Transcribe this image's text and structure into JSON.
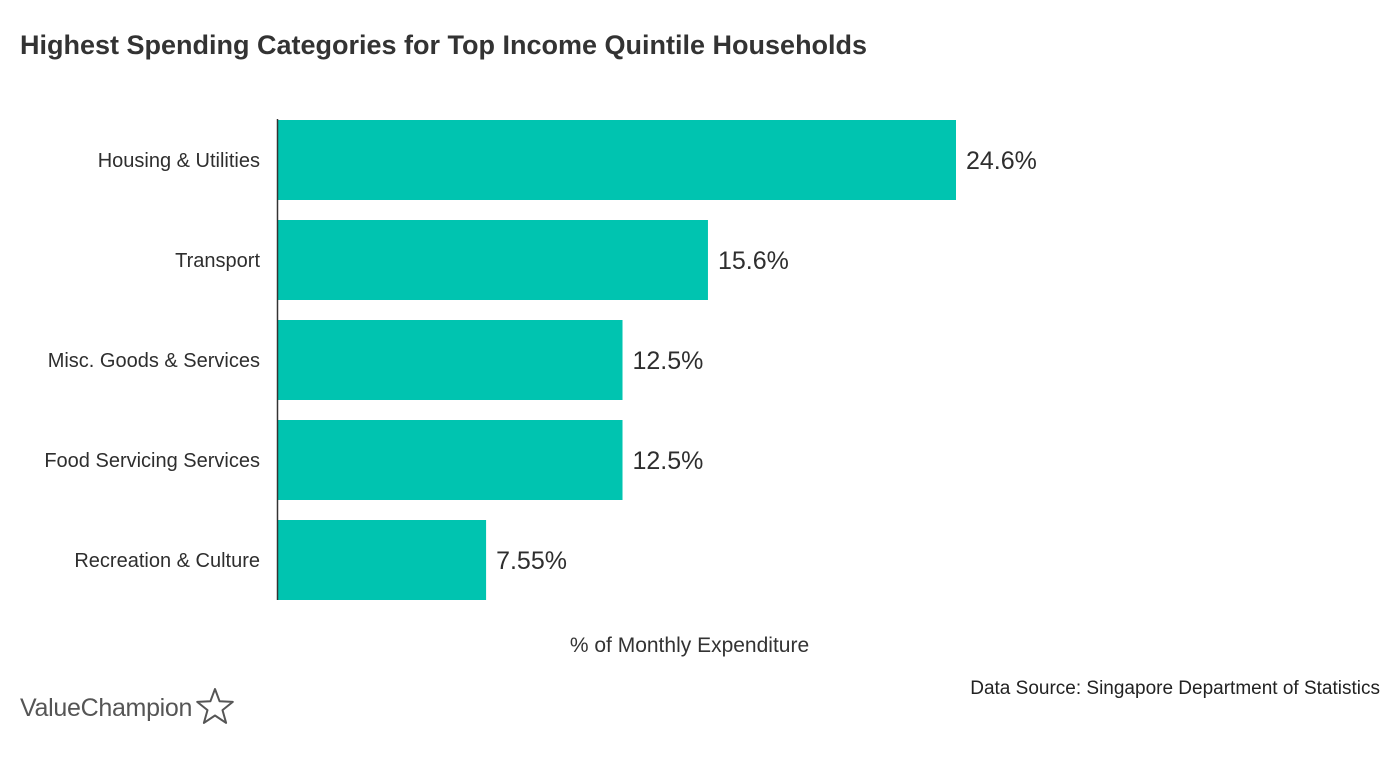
{
  "title": "Highest Spending Categories for Top Income Quintile Households",
  "source": "Data Source: Singapore Department of Statistics",
  "brand": {
    "name": "ValueChampion",
    "icon": "star-outline-icon"
  },
  "colors": {
    "bar": "#00c4b0",
    "axis": "#333333",
    "text": "#2e2e2e"
  },
  "chart_data": {
    "type": "bar",
    "orientation": "horizontal",
    "title": "Highest Spending Categories for Top Income Quintile Households",
    "xlabel": "% of Monthly Expenditure",
    "ylabel": "",
    "categories": [
      "Housing & Utilities",
      "Transport",
      "Misc. Goods & Services",
      "Food Servicing Services",
      "Recreation & Culture"
    ],
    "values": [
      24.6,
      15.6,
      12.5,
      12.5,
      7.55
    ],
    "value_labels": [
      "24.6%",
      "15.6%",
      "12.5%",
      "12.5%",
      "7.55%"
    ],
    "xlim": [
      0,
      24.6
    ],
    "grid": false,
    "legend": "none"
  }
}
